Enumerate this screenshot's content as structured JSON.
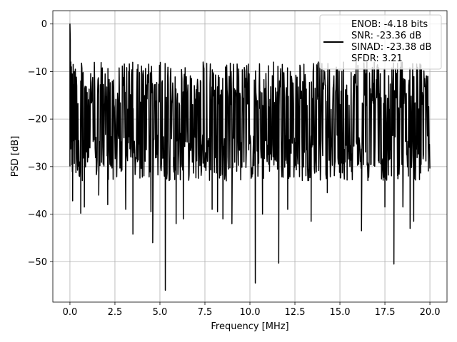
{
  "chart_data": {
    "type": "line",
    "title": "",
    "xlabel": "Frequency [MHz]",
    "ylabel": "PSD [dB]",
    "xlim": [
      -0.95,
      20.95
    ],
    "ylim": [
      -58.5,
      2.8
    ],
    "xticks": [
      0.0,
      2.5,
      5.0,
      7.5,
      10.0,
      12.5,
      15.0,
      17.5,
      20.0
    ],
    "xtick_labels": [
      "0.0",
      "2.5",
      "5.0",
      "7.5",
      "10.0",
      "12.5",
      "15.0",
      "17.5",
      "20.0"
    ],
    "yticks": [
      0,
      -10,
      -20,
      -30,
      -40,
      -50
    ],
    "ytick_labels": [
      "0",
      "−10",
      "−20",
      "−30",
      "−40",
      "−50"
    ],
    "grid": true,
    "legend_position": "top-right",
    "legend": [
      "ENOB: -4.18 bits",
      "SNR: -23.36 dB",
      "SINAD: -23.38 dB",
      "SFDR: 3.21"
    ],
    "series": [
      {
        "color": "#000000",
        "noise_floor_range_db": [
          -33,
          -8
        ],
        "sample_count": 900,
        "peaks": [
          {
            "x": 0.0,
            "y": 0.0
          },
          {
            "x": 0.02,
            "y": -3.5
          },
          {
            "x": 0.05,
            "y": -8.0
          },
          {
            "x": 0.1,
            "y": -12.0
          },
          {
            "x": 0.15,
            "y": -14.5
          },
          {
            "x": 0.2,
            "y": -15.5
          },
          {
            "x": 0.08,
            "y": -9.0
          },
          {
            "x": 0.12,
            "y": -10.5
          },
          {
            "x": 0.18,
            "y": -8.5
          },
          {
            "x": 0.25,
            "y": -10.0
          },
          {
            "x": 0.3,
            "y": -9.5
          },
          {
            "x": 3.3,
            "y": -8.4
          },
          {
            "x": 7.4,
            "y": -8.0
          },
          {
            "x": 11.8,
            "y": -8.5
          },
          {
            "x": 13.8,
            "y": -8.0
          },
          {
            "x": 15.9,
            "y": -7.8
          },
          {
            "x": 16.5,
            "y": -8.0
          },
          {
            "x": 18.2,
            "y": -8.3
          },
          {
            "x": 19.5,
            "y": -8.6
          }
        ],
        "dips": [
          {
            "x": 0.15,
            "y": -37.2
          },
          {
            "x": 0.6,
            "y": -39.8
          },
          {
            "x": 0.8,
            "y": -38.5
          },
          {
            "x": 1.6,
            "y": -36.0
          },
          {
            "x": 2.1,
            "y": -38.0
          },
          {
            "x": 3.1,
            "y": -39.0
          },
          {
            "x": 3.5,
            "y": -44.2
          },
          {
            "x": 4.5,
            "y": -39.5
          },
          {
            "x": 4.6,
            "y": -41.5
          },
          {
            "x": 4.6,
            "y": -46.0
          },
          {
            "x": 5.3,
            "y": -56.0
          },
          {
            "x": 5.9,
            "y": -42.0
          },
          {
            "x": 6.3,
            "y": -41.0
          },
          {
            "x": 7.9,
            "y": -39.0
          },
          {
            "x": 8.2,
            "y": -39.5
          },
          {
            "x": 8.5,
            "y": -41.0
          },
          {
            "x": 9.0,
            "y": -42.0
          },
          {
            "x": 10.3,
            "y": -54.5
          },
          {
            "x": 10.7,
            "y": -40.0
          },
          {
            "x": 11.6,
            "y": -50.3
          },
          {
            "x": 12.1,
            "y": -39.0
          },
          {
            "x": 13.4,
            "y": -41.5
          },
          {
            "x": 14.3,
            "y": -35.5
          },
          {
            "x": 16.2,
            "y": -43.5
          },
          {
            "x": 17.5,
            "y": -38.5
          },
          {
            "x": 18.0,
            "y": -50.5
          },
          {
            "x": 18.5,
            "y": -38.5
          },
          {
            "x": 18.9,
            "y": -43.0
          },
          {
            "x": 19.1,
            "y": -41.5
          }
        ]
      }
    ]
  }
}
